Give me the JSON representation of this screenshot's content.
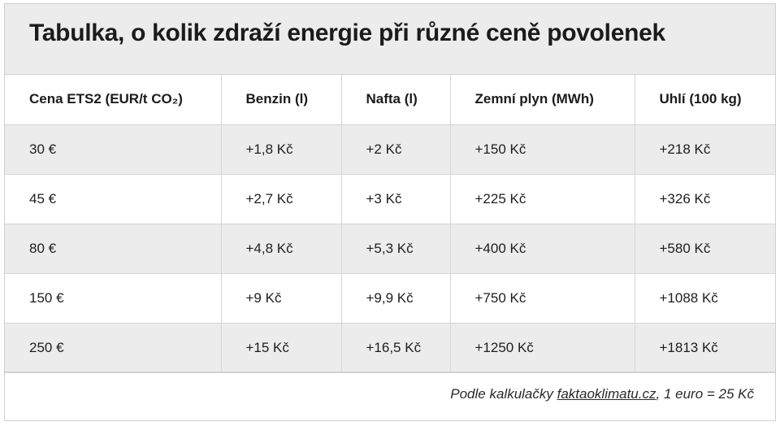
{
  "title": "Tabulka, o kolik zdraží energie při různé ceně povolenek",
  "columns": [
    "Cena ETS2 (EUR/t CO₂)",
    "Benzin (l)",
    "Nafta (l)",
    "Zemní plyn (MWh)",
    "Uhlí (100 kg)"
  ],
  "rows": [
    [
      "30 €",
      "+1,8 Kč",
      "+2 Kč",
      "+150 Kč",
      "+218 Kč"
    ],
    [
      "45 €",
      "+2,7 Kč",
      "+3 Kč",
      "+225 Kč",
      "+326 Kč"
    ],
    [
      "80 €",
      "+4,8 Kč",
      "+5,3 Kč",
      "+400 Kč",
      "+580 Kč"
    ],
    [
      "150 €",
      "+9 Kč",
      "+9,9 Kč",
      "+750 Kč",
      "+1088 Kč"
    ],
    [
      "250 €",
      "+15 Kč",
      "+16,5 Kč",
      "+1250 Kč",
      "+1813 Kč"
    ]
  ],
  "footer": {
    "prefix": "Podle kalkulačky ",
    "link_text": "faktaoklimatu.cz",
    "suffix": ", 1 euro = 25 Kč"
  }
}
